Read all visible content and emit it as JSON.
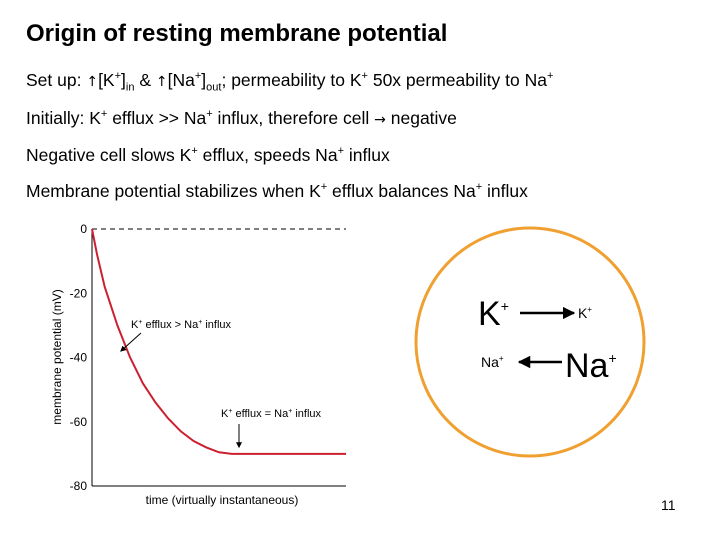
{
  "slide": {
    "title": "Origin of resting membrane potential",
    "page_number": "11"
  },
  "bullets": {
    "setup": {
      "prefix": "Set up: ",
      "up_arrow": "↑",
      "k_ion": "[K",
      "plus": "+",
      "k_close": "]",
      "in_sub": "in",
      "amp": " & ",
      "na_ion": "[Na",
      "na_close": "]",
      "out_sub": "out",
      "rest": "; permeability to K",
      "mid": " 50x permeability to Na"
    },
    "initially": {
      "text_a": "Initially: K",
      "text_b": " efflux >> Na",
      "text_c": " influx, therefore cell ",
      "arrow": "→",
      "text_d": " negative"
    },
    "negative": {
      "text_a": "Negative cell slows K",
      "text_b": " efflux, speeds Na",
      "text_c": " influx"
    },
    "stabilizes": {
      "text_a": "Membrane potential stabilizes when K",
      "text_b": " efflux balances Na",
      "text_c": " influx"
    }
  },
  "chart_data": {
    "type": "line",
    "title": "",
    "xlabel": "time (virtually instantaneous)",
    "ylabel": "membrane potential (mV)",
    "ylim": [
      -80,
      0
    ],
    "yticks": [
      "0",
      "-20",
      "-40",
      "-60",
      "-80"
    ],
    "ytick_values": [
      0,
      -20,
      -40,
      -60,
      -80
    ],
    "xlim": [
      0,
      1
    ],
    "series": [
      {
        "x": [
          0,
          0.02,
          0.05,
          0.1,
          0.15,
          0.2,
          0.25,
          0.3,
          0.35,
          0.4,
          0.45,
          0.5,
          0.55,
          0.6,
          1.0
        ],
        "values": [
          0,
          -8,
          -18,
          -30,
          -40,
          -48,
          -54,
          -59,
          -63,
          -66,
          -68,
          -69.5,
          -70,
          -70,
          -70
        ],
        "color": "#cc2030"
      }
    ],
    "zero_reference": {
      "y": 0,
      "style": "dashed"
    },
    "annotations": [
      {
        "text_a": "K",
        "plus": "+",
        "text_b": " efflux > Na",
        "text_c": " influx",
        "x": 0.1,
        "y": -30
      },
      {
        "text_a": "K",
        "plus": "+",
        "text_b": " efflux = Na",
        "text_c": " influx",
        "x": 0.6,
        "y": -70
      }
    ]
  },
  "diagram": {
    "circle_color": "#f0a030",
    "k_big": "K",
    "k_small": "K",
    "na_big": "Na",
    "na_small": "Na",
    "plus": "+"
  }
}
